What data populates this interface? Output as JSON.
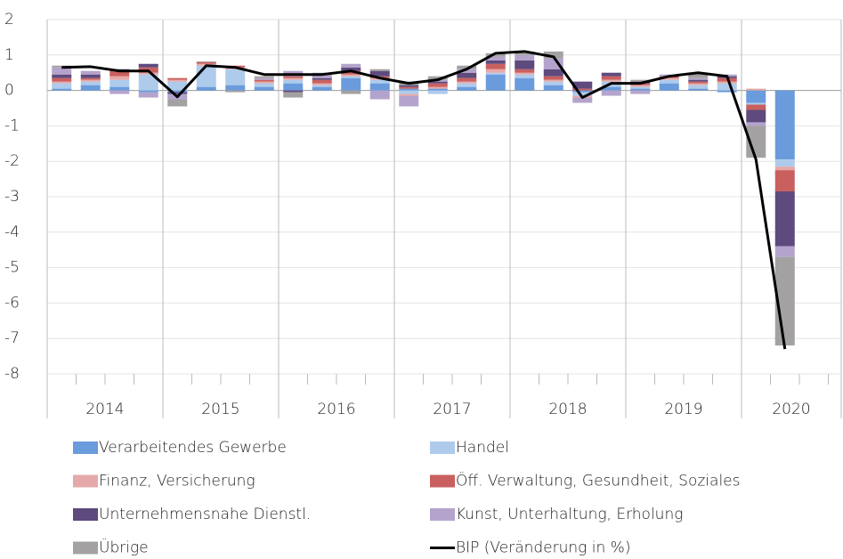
{
  "chart_data": {
    "type": "stacked_bar_line",
    "year_labels": [
      "2014",
      "2015",
      "2016",
      "2017",
      "2018",
      "2019",
      "2020"
    ],
    "ylim": [
      -8,
      2
    ],
    "yticks": [
      -8,
      -7,
      -6,
      -5,
      -4,
      -3,
      -2,
      -1,
      0,
      1,
      2
    ],
    "grid": true,
    "series": [
      {
        "name": "Verarbeitendes Gewerbe",
        "color": "#6a9bdc",
        "values": [
          0.05,
          0.15,
          0.1,
          -0.05,
          -0.05,
          0.1,
          0.15,
          0.1,
          0.2,
          0.1,
          0.35,
          0.2,
          0.05,
          0.05,
          0.1,
          0.45,
          0.35,
          0.15,
          -0.05,
          0.1,
          0.05,
          0.2,
          0.05,
          -0.05,
          -0.35,
          -1.95
        ]
      },
      {
        "name": "Handel",
        "color": "#aecbec",
        "values": [
          0.15,
          0.1,
          0.2,
          0.45,
          0.25,
          0.6,
          0.45,
          0.1,
          0.1,
          0.05,
          0.05,
          0.1,
          -0.1,
          -0.1,
          0.1,
          0.05,
          0.1,
          0.1,
          -0.1,
          0.15,
          0.05,
          0.1,
          0.1,
          0.2,
          -0.05,
          -0.2
        ]
      },
      {
        "name": "Finanz, Versicherung",
        "color": "#e6a9a9",
        "values": [
          0.05,
          0.05,
          0.1,
          0.05,
          0.05,
          0.05,
          0.05,
          0.05,
          0.05,
          0.05,
          0.05,
          0.05,
          -0.05,
          0.05,
          0.05,
          0.1,
          0.05,
          0.05,
          -0.05,
          0.05,
          0.05,
          0.05,
          0.05,
          0.05,
          0.05,
          -0.1
        ]
      },
      {
        "name": "Öff. Verwaltung, Gesundheit, Soziales",
        "color": "#c9605f",
        "values": [
          0.1,
          0.05,
          0.15,
          0.15,
          0.05,
          0.05,
          0.05,
          0.05,
          0.05,
          0.1,
          0.1,
          0.05,
          0.05,
          0.1,
          0.1,
          0.15,
          0.1,
          0.1,
          0.05,
          0.1,
          0.05,
          0.05,
          0.05,
          0.1,
          -0.15,
          -0.6
        ]
      },
      {
        "name": "Unternehmensnahe Dienstl.",
        "color": "#5e4a7d",
        "values": [
          0.1,
          0.1,
          0.05,
          0.1,
          -0.05,
          0,
          0,
          0,
          -0.05,
          0.05,
          0.1,
          0.15,
          0.05,
          0.05,
          0.15,
          0.1,
          0.25,
          0.2,
          0.2,
          0.1,
          0.05,
          0,
          0.05,
          0.05,
          -0.35,
          -1.55
        ]
      },
      {
        "name": "Kunst, Unterhaltung, Erholung",
        "color": "#b4a4cd",
        "values": [
          0.2,
          0.1,
          -0.1,
          -0.15,
          -0.15,
          0,
          0,
          0.05,
          0.15,
          0.15,
          0.1,
          -0.25,
          -0.3,
          0.05,
          0.1,
          0.1,
          0.15,
          0.3,
          -0.15,
          -0.15,
          -0.1,
          0.05,
          0.05,
          0.05,
          -0.1,
          -0.3
        ]
      },
      {
        "name": "Übrige",
        "color": "#a3a1a1",
        "values": [
          0.05,
          0,
          0,
          0,
          -0.2,
          0.02,
          -0.05,
          0.05,
          -0.15,
          0,
          -0.1,
          0.05,
          0.1,
          0.1,
          0.1,
          0.1,
          0.1,
          0.2,
          0,
          0,
          0.05,
          0,
          0.15,
          0,
          -0.9,
          -2.5
        ]
      }
    ],
    "line": {
      "name": "BIP (Veränderung in %)",
      "color": "#000000",
      "values": [
        0.65,
        0.67,
        0.55,
        0.55,
        -0.18,
        0.7,
        0.65,
        0.45,
        0.45,
        0.45,
        0.55,
        0.35,
        0.2,
        0.3,
        0.6,
        1.05,
        1.1,
        0.95,
        -0.2,
        0.2,
        0.2,
        0.4,
        0.5,
        0.4,
        -1.95,
        -7.3
      ]
    }
  }
}
